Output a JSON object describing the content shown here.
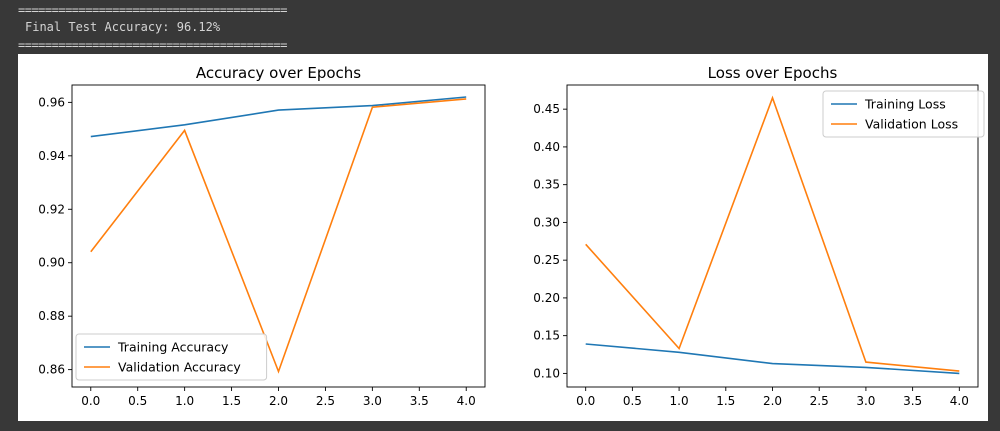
{
  "console": {
    "separator": "========================================",
    "result_text": "Final Test Accuracy: 96.12%"
  },
  "chart_data": [
    {
      "type": "line",
      "title": "Accuracy over Epochs",
      "x": [
        0,
        1,
        2,
        3,
        4
      ],
      "xticks": [
        "0.0",
        "0.5",
        "1.0",
        "1.5",
        "2.0",
        "2.5",
        "3.0",
        "3.5",
        "4.0"
      ],
      "yticks": [
        "0.86",
        "0.88",
        "0.90",
        "0.92",
        "0.94",
        "0.96"
      ],
      "xlim": [
        -0.2,
        4.2
      ],
      "ylim": [
        0.8535,
        0.9665
      ],
      "legend": "lower-left",
      "grid": false,
      "series": [
        {
          "name": "Training Accuracy",
          "color": "#1f77b4",
          "values": [
            0.9472,
            0.9516,
            0.9571,
            0.9588,
            0.962
          ]
        },
        {
          "name": "Validation Accuracy",
          "color": "#ff7f0e",
          "values": [
            0.9041,
            0.9495,
            0.8593,
            0.9582,
            0.9613
          ]
        }
      ]
    },
    {
      "type": "line",
      "title": "Loss over Epochs",
      "x": [
        0,
        1,
        2,
        3,
        4
      ],
      "xticks": [
        "0.0",
        "0.5",
        "1.0",
        "1.5",
        "2.0",
        "2.5",
        "3.0",
        "3.5",
        "4.0"
      ],
      "yticks": [
        "0.10",
        "0.15",
        "0.20",
        "0.25",
        "0.30",
        "0.35",
        "0.40",
        "0.45"
      ],
      "xlim": [
        -0.2,
        4.2
      ],
      "ylim": [
        0.082,
        0.482
      ],
      "legend": "upper-right",
      "grid": false,
      "series": [
        {
          "name": "Training Loss",
          "color": "#1f77b4",
          "values": [
            0.139,
            0.128,
            0.113,
            0.108,
            0.1
          ]
        },
        {
          "name": "Validation Loss",
          "color": "#ff7f0e",
          "values": [
            0.271,
            0.133,
            0.465,
            0.115,
            0.103
          ]
        }
      ]
    }
  ]
}
